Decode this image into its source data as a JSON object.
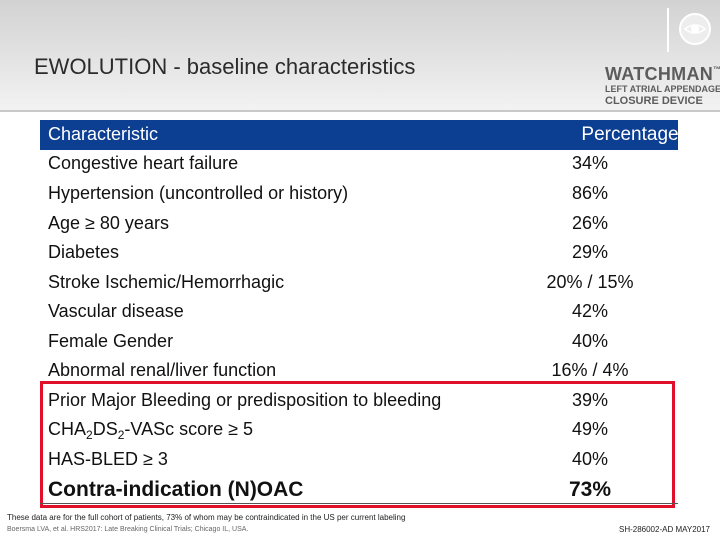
{
  "slide": {
    "title": "EWOLUTION - baseline characteristics"
  },
  "brand": {
    "name": "WATCHMAN",
    "tm": "™",
    "line1": "LEFT ATRIAL APPENDAGE",
    "line2": "CLOSURE DEVICE"
  },
  "table": {
    "header": {
      "characteristic": "Characteristic",
      "percentage": "Percentage"
    },
    "rows": [
      {
        "label": "Congestive heart failure",
        "value": "34%"
      },
      {
        "label": "Hypertension (uncontrolled or history)",
        "value": "86%"
      },
      {
        "label": "Age ≥ 80 years",
        "value": "26%"
      },
      {
        "label": "Diabetes",
        "value": "29%"
      },
      {
        "label": "Stroke Ischemic/Hemorrhagic",
        "value": "20% / 15%"
      },
      {
        "label": "Vascular disease",
        "value": "42%"
      },
      {
        "label": "Female Gender",
        "value": "40%"
      },
      {
        "label": "Abnormal renal/liver function",
        "value": "16% / 4%"
      },
      {
        "label": "Prior Major Bleeding or predisposition to bleeding",
        "value": "39%"
      },
      {
        "label_parts": [
          "CHA",
          "2",
          "DS",
          "2",
          "-VASc score ≥ 5"
        ],
        "value": "49%"
      },
      {
        "label": "HAS-BLED ≥ 3",
        "value": "40%"
      },
      {
        "label": "Contra-indication (N)OAC",
        "value": "73%"
      }
    ]
  },
  "footer": {
    "footnote": "These data are for the full cohort of patients, 73% of whom may be contraindicated in the US per current labeling",
    "citation": "Boersma LVA, et al. HRS2017: Late Breaking Clinical Trials; Chicago IL, USA.",
    "code": "SH-286002-AD MAY2017"
  },
  "colors": {
    "header_bg": "#0c3e92",
    "highlight_border": "#e0102a"
  }
}
